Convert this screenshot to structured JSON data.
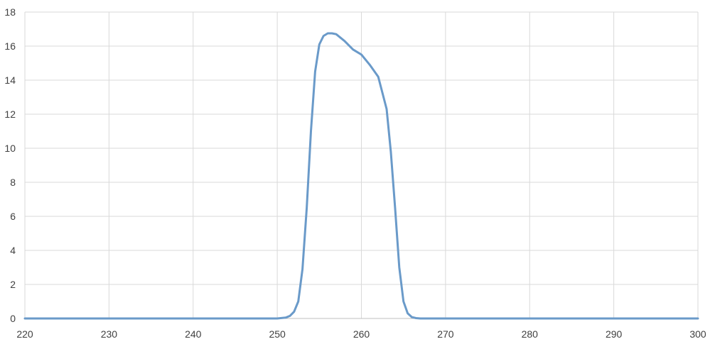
{
  "chart_data": {
    "type": "line",
    "title": "",
    "xlabel": "",
    "ylabel": "",
    "xlim": [
      220,
      300
    ],
    "ylim": [
      0,
      18
    ],
    "x_ticks": [
      220,
      230,
      240,
      250,
      260,
      270,
      280,
      290,
      300
    ],
    "y_ticks": [
      0,
      2,
      4,
      6,
      8,
      10,
      12,
      14,
      16,
      18
    ],
    "grid": true,
    "legend": "none",
    "colors": {
      "series": "#6a9ac9",
      "grid": "#d9d9d9",
      "text": "#404040"
    },
    "series": [
      {
        "x": [
          220,
          230,
          240,
          250,
          251,
          251.5,
          252,
          252.5,
          253,
          253.5,
          254,
          254.5,
          255,
          255.5,
          256,
          256.5,
          257,
          258,
          259,
          260,
          261,
          262,
          263,
          263.5,
          264,
          264.5,
          265,
          265.5,
          266,
          266.5,
          267,
          268,
          270,
          280,
          290,
          300
        ],
        "y": [
          0,
          0,
          0,
          0,
          0.05,
          0.15,
          0.4,
          1.0,
          2.9,
          6.5,
          11.0,
          14.5,
          16.1,
          16.6,
          16.75,
          16.75,
          16.7,
          16.3,
          15.8,
          15.5,
          14.9,
          14.2,
          12.3,
          9.8,
          6.5,
          3.0,
          1.0,
          0.3,
          0.08,
          0.02,
          0,
          0,
          0,
          0,
          0,
          0
        ]
      }
    ]
  }
}
